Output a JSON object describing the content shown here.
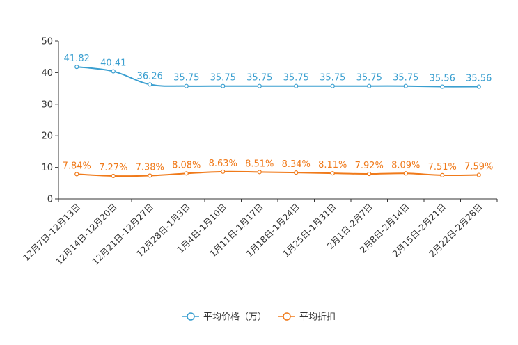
{
  "chart_data": {
    "type": "line",
    "title": "",
    "xlabel": "",
    "ylabel": "",
    "ylim": [
      0,
      50
    ],
    "yticks": [
      0,
      10,
      20,
      30,
      40,
      50
    ],
    "categories": [
      "12月7日-12月13日",
      "12月14日-12月20日",
      "12月21日-12月27日",
      "12月28日-1月3日",
      "1月4日-1月10日",
      "1月11日-1月17日",
      "1月18日-1月24日",
      "1月25日-1月31日",
      "2月1日-2月7日",
      "2月8日-2月14日",
      "2月15日-2月21日",
      "2月22日-2月28日"
    ],
    "series": [
      {
        "name": "平均价格（万）",
        "color": "#3a9fd0",
        "values": [
          41.82,
          40.41,
          36.26,
          35.75,
          35.75,
          35.75,
          35.75,
          35.75,
          35.75,
          35.75,
          35.56,
          35.56
        ],
        "labels": [
          "41.82",
          "40.41",
          "36.26",
          "35.75",
          "35.75",
          "35.75",
          "35.75",
          "35.75",
          "35.75",
          "35.75",
          "35.56",
          "35.56"
        ]
      },
      {
        "name": "平均折扣",
        "color": "#f07a1a",
        "values": [
          7.84,
          7.27,
          7.38,
          8.08,
          8.63,
          8.51,
          8.34,
          8.11,
          7.92,
          8.09,
          7.51,
          7.59
        ],
        "labels": [
          "7.84%",
          "7.27%",
          "7.38%",
          "8.08%",
          "8.63%",
          "8.51%",
          "8.34%",
          "8.11%",
          "7.92%",
          "8.09%",
          "7.51%",
          "7.59%"
        ]
      }
    ],
    "legend": "bottom-center"
  }
}
